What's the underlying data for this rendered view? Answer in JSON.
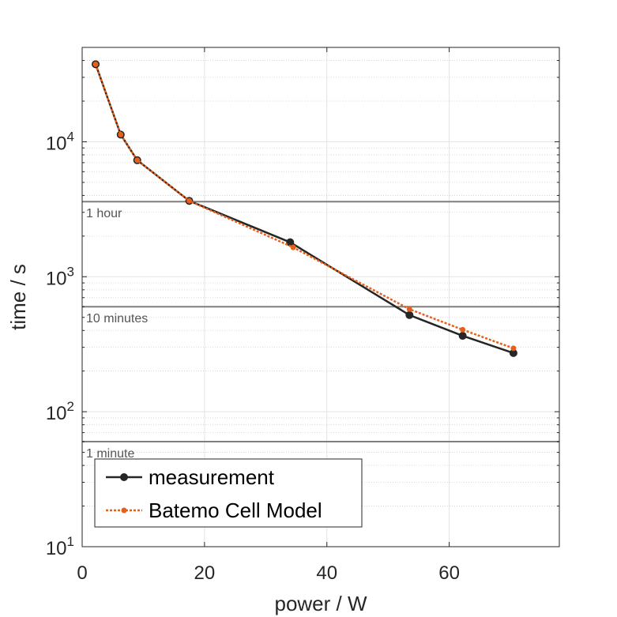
{
  "chart_data": {
    "type": "line",
    "title": "",
    "xlabel": "power / W",
    "ylabel": "time / s",
    "xlim": [
      0,
      78
    ],
    "ylim": [
      10,
      50000
    ],
    "yscale": "log",
    "grid": true,
    "xticks": [
      0,
      20,
      40,
      60
    ],
    "yticks": [
      {
        "value": 10,
        "base": "10",
        "exp": "1"
      },
      {
        "value": 100,
        "base": "10",
        "exp": "2"
      },
      {
        "value": 1000,
        "base": "10",
        "exp": "3"
      },
      {
        "value": 10000,
        "base": "10",
        "exp": "4"
      }
    ],
    "reference_lines": [
      {
        "y": 3600,
        "label": "1 hour"
      },
      {
        "y": 600,
        "label": "10 minutes"
      },
      {
        "y": 60,
        "label": "1 minute"
      }
    ],
    "series": [
      {
        "name": "measurement",
        "color": "#262626",
        "style": "solid",
        "x": [
          2.2,
          6.3,
          9.0,
          17.5,
          34.0,
          53.5,
          62.2,
          70.5
        ],
        "y": [
          37500,
          11300,
          7300,
          3650,
          1800,
          520,
          365,
          272
        ]
      },
      {
        "name": "Batemo Cell Model",
        "color": "#E5601A",
        "style": "dotted",
        "x": [
          2.2,
          6.3,
          9.0,
          17.5,
          34.5,
          53.5,
          62.2,
          70.5
        ],
        "y": [
          37500,
          11300,
          7300,
          3650,
          1650,
          575,
          405,
          295
        ]
      }
    ],
    "legend_position": "bottom-left"
  }
}
